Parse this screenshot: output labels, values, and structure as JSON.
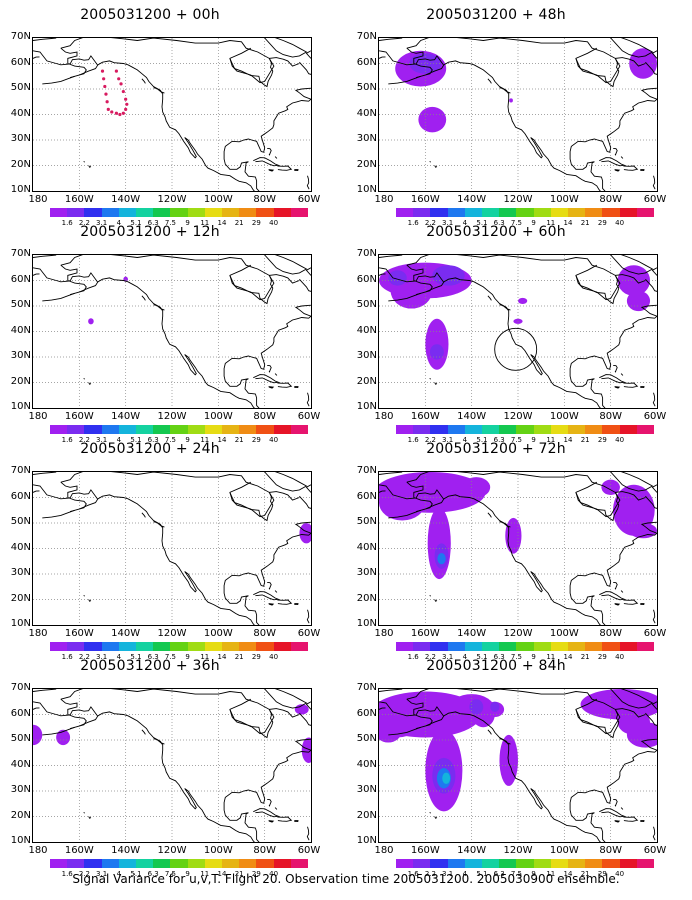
{
  "colorbar": {
    "colors": [
      "#a020f0",
      "#7a2cf0",
      "#3030f0",
      "#1e78f0",
      "#14b4dc",
      "#14d2a0",
      "#14c850",
      "#64d214",
      "#a0dc14",
      "#e6dc14",
      "#e6b414",
      "#f08c14",
      "#f05014",
      "#e61428",
      "#e6146e"
    ],
    "labels": [
      "1.6",
      "2.2",
      "3.1",
      "4",
      "5.1",
      "6.3",
      "7.5",
      "9",
      "11",
      "14",
      "21",
      "29",
      "40"
    ]
  },
  "axes": {
    "y_ticks": [
      "70N",
      "60N",
      "50N",
      "40N",
      "30N",
      "20N",
      "10N"
    ],
    "x_ticks": [
      "180",
      "160W",
      "140W",
      "120W",
      "100W",
      "80W",
      "60W"
    ]
  },
  "panels": [
    {
      "id": "p00",
      "title": "2005031200 + 00h"
    },
    {
      "id": "p48",
      "title": "2005031200 + 48h"
    },
    {
      "id": "p12",
      "title": "2005031200 + 12h"
    },
    {
      "id": "p60",
      "title": "2005031200 + 60h"
    },
    {
      "id": "p24",
      "title": "2005031200 + 24h"
    },
    {
      "id": "p72",
      "title": "2005031200 + 72h"
    },
    {
      "id": "p36",
      "title": "2005031200 + 36h"
    },
    {
      "id": "p84",
      "title": "2005031200 + 84h"
    }
  ],
  "caption": "Signal Variance for u,v,T. Flight 20. Observation time 2005031200. 2005030900 ensemble."
}
